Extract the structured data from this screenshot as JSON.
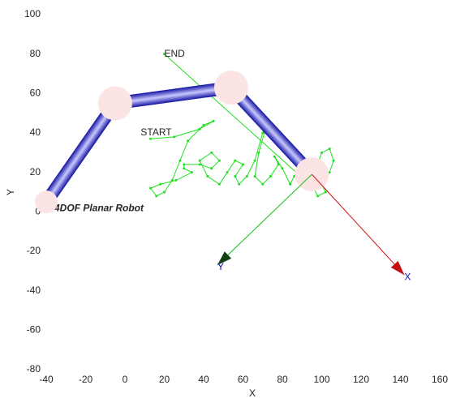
{
  "chart_data": {
    "type": "robot",
    "title": "4DOF Planar Robot",
    "xlabel": "X",
    "ylabel": "Y",
    "xlim": [
      -40,
      160
    ],
    "ylim": [
      -80,
      100
    ],
    "xticks": [
      -40,
      -20,
      0,
      20,
      40,
      60,
      80,
      100,
      120,
      140,
      160
    ],
    "yticks": [
      -80,
      -60,
      -40,
      -20,
      0,
      20,
      40,
      60,
      80,
      100
    ],
    "joints": {
      "x": [
        -40,
        -5,
        54,
        95
      ],
      "y": [
        5,
        55,
        63,
        19
      ],
      "color": "#1010c8",
      "joint_color": "#fde4e4"
    },
    "frame": [
      {
        "name": "X",
        "color": "#d01010",
        "x": [
          95,
          142
        ],
        "y": [
          19,
          -32
        ]
      },
      {
        "name": "Y",
        "color": "#10c010",
        "x": [
          95,
          47
        ],
        "y": [
          19,
          -27
        ]
      }
    ],
    "trajectory": {
      "color": "#20e020",
      "x": [
        13,
        25,
        38,
        45,
        40,
        32,
        28,
        24,
        20,
        16,
        13,
        18,
        26,
        34,
        30,
        30,
        38,
        44,
        48,
        44,
        38,
        42,
        48,
        52,
        56,
        60,
        56,
        58,
        62,
        66,
        70,
        72,
        68,
        66,
        70,
        74,
        78,
        76,
        80,
        84,
        86,
        90,
        88,
        92,
        96,
        98,
        100,
        104,
        106,
        104,
        100,
        102,
        98,
        96,
        20
      ],
      "y": [
        37,
        38,
        42,
        46,
        44,
        36,
        26,
        16,
        10,
        8,
        12,
        14,
        16,
        20,
        22,
        24,
        24,
        22,
        26,
        30,
        26,
        18,
        14,
        20,
        26,
        24,
        18,
        14,
        18,
        26,
        40,
        44,
        30,
        18,
        14,
        18,
        24,
        28,
        22,
        14,
        18,
        28,
        22,
        16,
        18,
        24,
        30,
        32,
        26,
        20,
        14,
        10,
        8,
        12,
        80
      ]
    },
    "annotations": [
      {
        "text": "START",
        "x": 8,
        "y": 40
      },
      {
        "text": "END",
        "x": 20,
        "y": 80
      }
    ]
  }
}
